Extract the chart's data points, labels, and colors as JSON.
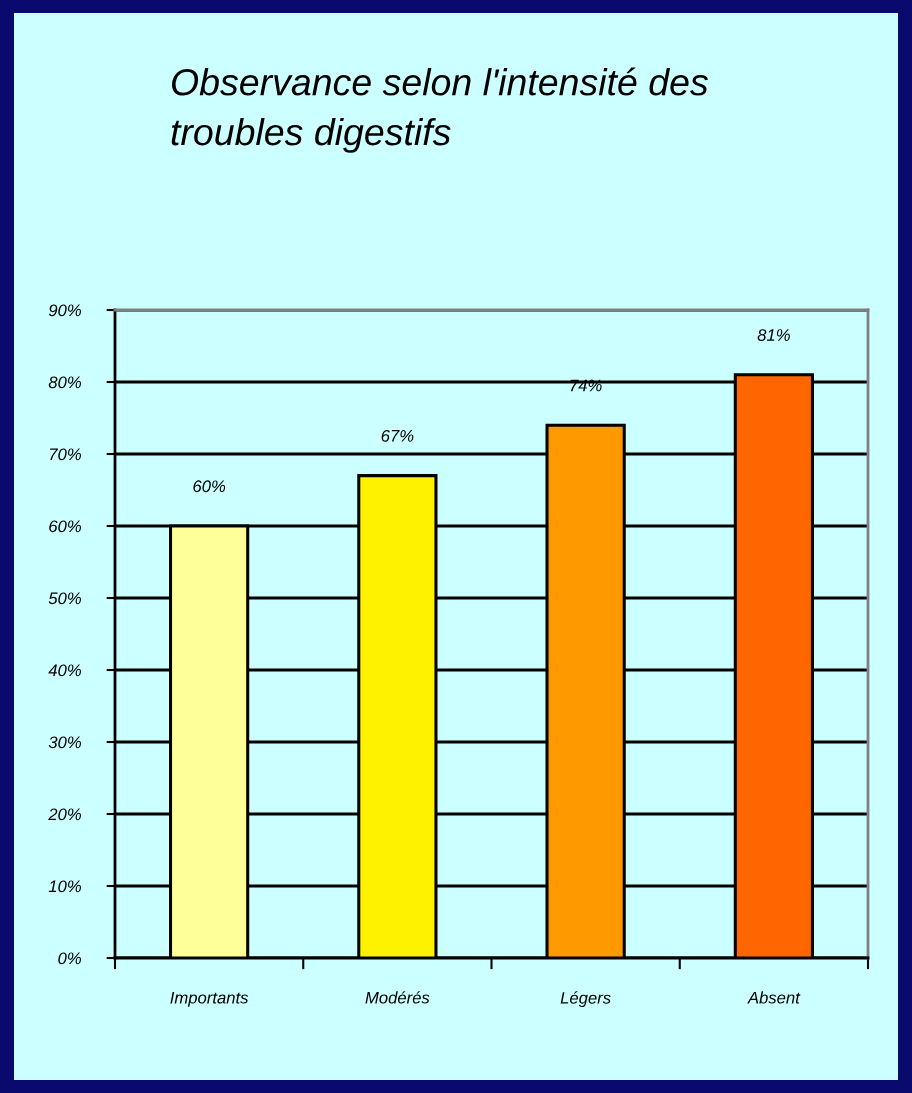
{
  "chart_data": {
    "type": "bar",
    "title": "Observance selon l'intensité des\ntroubles digestifs",
    "categories": [
      "Importants",
      "Modérés",
      "Légers",
      "Absent"
    ],
    "values": [
      60,
      67,
      74,
      81
    ],
    "colors": [
      "#ffff99",
      "#fff200",
      "#ff9900",
      "#ff6600"
    ],
    "value_labels": [
      "60%",
      "67%",
      "74%",
      "81%"
    ],
    "ylim": [
      0,
      90
    ],
    "yticks": [
      {
        "value": 0,
        "label": "0%"
      },
      {
        "value": 10,
        "label": "10%"
      },
      {
        "value": 20,
        "label": "20%"
      },
      {
        "value": 30,
        "label": "30%"
      },
      {
        "value": 40,
        "label": "40%"
      },
      {
        "value": 50,
        "label": "50%"
      },
      {
        "value": 60,
        "label": "60%"
      },
      {
        "value": 70,
        "label": "70%"
      },
      {
        "value": 80,
        "label": "80%"
      },
      {
        "value": 90,
        "label": "90%"
      }
    ],
    "grid": "y",
    "legend": false
  }
}
